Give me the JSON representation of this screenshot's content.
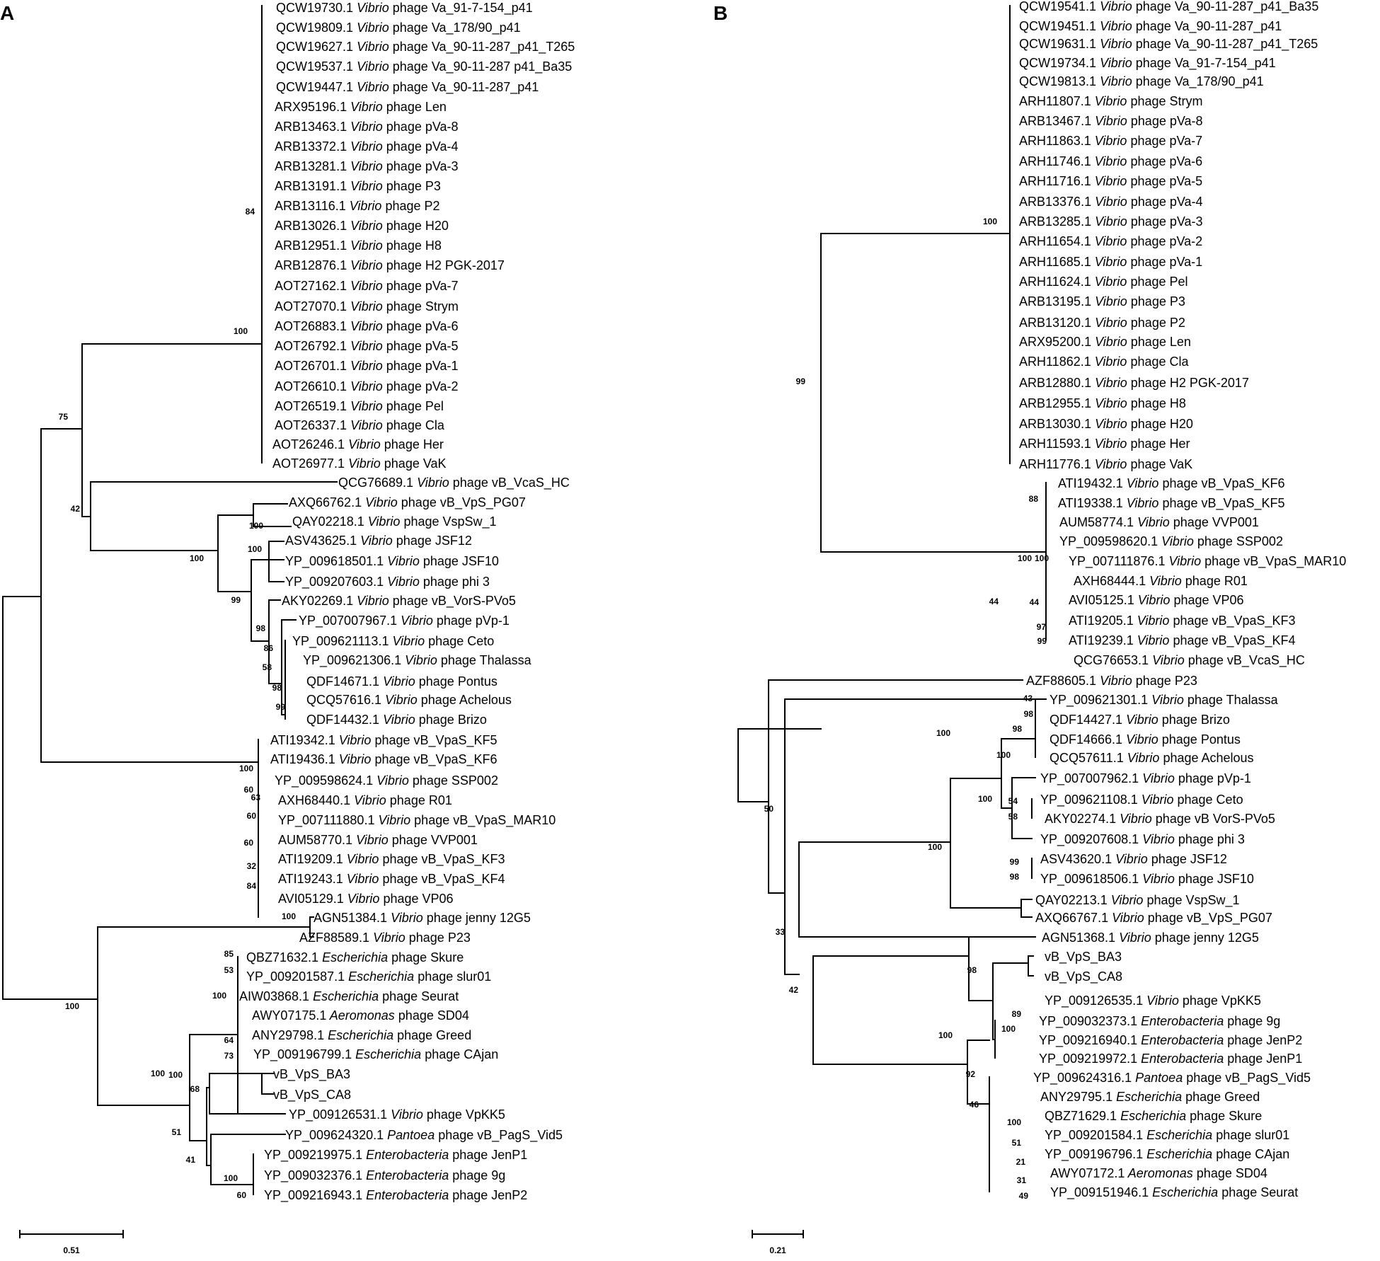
{
  "panels": [
    {
      "id": "A",
      "label": "A",
      "scale_label": "0.51",
      "tips": [
        {
          "acc": "QCW19730.1",
          "genus": "Vibrio",
          "phage": "phage Va_91-7-154_p41"
        },
        {
          "acc": "QCW19809.1",
          "genus": "Vibrio",
          "phage": "phage Va_178/90_p41"
        },
        {
          "acc": "QCW19627.1",
          "genus": "Vibrio",
          "phage": "phage Va_90-11-287_p41_T265"
        },
        {
          "acc": "QCW19537.1",
          "genus": "Vibrio",
          "phage": "phage Va_90-11-287 p41_Ba35"
        },
        {
          "acc": "QCW19447.1",
          "genus": "Vibrio",
          "phage": "phage Va_90-11-287_p41"
        },
        {
          "acc": "ARX95196.1",
          "genus": "Vibrio",
          "phage": "phage Len"
        },
        {
          "acc": "ARB13463.1",
          "genus": "Vibrio",
          "phage": "phage pVa-8"
        },
        {
          "acc": "ARB13372.1",
          "genus": "Vibrio",
          "phage": "phage pVa-4"
        },
        {
          "acc": "ARB13281.1",
          "genus": "Vibrio",
          "phage": "phage pVa-3"
        },
        {
          "acc": "ARB13191.1",
          "genus": "Vibrio",
          "phage": "phage P3"
        },
        {
          "acc": "ARB13116.1",
          "genus": "Vibrio",
          "phage": "phage P2"
        },
        {
          "acc": "ARB13026.1",
          "genus": "Vibrio",
          "phage": "phage H20"
        },
        {
          "acc": "ARB12951.1",
          "genus": "Vibrio",
          "phage": "phage H8"
        },
        {
          "acc": "ARB12876.1",
          "genus": "Vibrio",
          "phage": "phage H2 PGK-2017"
        },
        {
          "acc": "AOT27162.1",
          "genus": "Vibrio",
          "phage": "phage pVa-7"
        },
        {
          "acc": "AOT27070.1",
          "genus": "Vibrio",
          "phage": "phage Strym"
        },
        {
          "acc": "AOT26883.1",
          "genus": "Vibrio",
          "phage": "phage pVa-6"
        },
        {
          "acc": "AOT26792.1",
          "genus": "Vibrio",
          "phage": "phage pVa-5"
        },
        {
          "acc": "AOT26701.1",
          "genus": "Vibrio",
          "phage": "phage pVa-1"
        },
        {
          "acc": "AOT26610.1",
          "genus": "Vibrio",
          "phage": "phage pVa-2"
        },
        {
          "acc": "AOT26519.1",
          "genus": "Vibrio",
          "phage": "phage Pel"
        },
        {
          "acc": "AOT26337.1",
          "genus": "Vibrio",
          "phage": "phage Cla"
        },
        {
          "acc": "AOT26246.1",
          "genus": "Vibrio",
          "phage": "phage Her"
        },
        {
          "acc": "AOT26977.1",
          "genus": "Vibrio",
          "phage": "phage VaK"
        },
        {
          "acc": "QCG76689.1",
          "genus": "Vibrio",
          "phage": "phage vB_VcaS_HC"
        },
        {
          "acc": "AXQ66762.1",
          "genus": "Vibrio",
          "phage": "phage vB_VpS_PG07"
        },
        {
          "acc": "QAY02218.1",
          "genus": "Vibrio",
          "phage": "phage VspSw_1"
        },
        {
          "acc": "ASV43625.1",
          "genus": "Vibrio",
          "phage": "phage JSF12"
        },
        {
          "acc": "YP_009618501.1",
          "genus": "Vibrio",
          "phage": "phage JSF10"
        },
        {
          "acc": "YP_009207603.1",
          "genus": "Vibrio",
          "phage": "phage phi 3"
        },
        {
          "acc": "AKY02269.1",
          "genus": "Vibrio",
          "phage": "phage vB_VorS-PVo5"
        },
        {
          "acc": "YP_007007967.1",
          "genus": "Vibrio",
          "phage": "phage pVp-1"
        },
        {
          "acc": "YP_009621113.1",
          "genus": "Vibrio",
          "phage": "phage Ceto"
        },
        {
          "acc": "YP_009621306.1",
          "genus": "Vibrio",
          "phage": "phage Thalassa"
        },
        {
          "acc": "QDF14671.1",
          "genus": "Vibrio",
          "phage": "phage Pontus"
        },
        {
          "acc": "QCQ57616.1",
          "genus": "Vibrio",
          "phage": "phage Achelous"
        },
        {
          "acc": "QDF14432.1",
          "genus": "Vibrio",
          "phage": "phage Brizo"
        },
        {
          "acc": "ATI19342.1",
          "genus": "Vibrio",
          "phage": "phage vB_VpaS_KF5"
        },
        {
          "acc": "ATI19436.1",
          "genus": "Vibrio",
          "phage": "phage vB_VpaS_KF6"
        },
        {
          "acc": "YP_009598624.1",
          "genus": "Vibrio",
          "phage": "phage SSP002"
        },
        {
          "acc": "AXH68440.1",
          "genus": "Vibrio",
          "phage": "phage R01"
        },
        {
          "acc": "YP_007111880.1",
          "genus": "Vibrio",
          "phage": "phage vB_VpaS_MAR10"
        },
        {
          "acc": "AUM58770.1",
          "genus": "Vibrio",
          "phage": "phage VVP001"
        },
        {
          "acc": "ATI19209.1",
          "genus": "Vibrio",
          "phage": "phage vB_VpaS_KF3"
        },
        {
          "acc": "ATI19243.1",
          "genus": "Vibrio",
          "phage": "phage vB_VpaS_KF4"
        },
        {
          "acc": "AVI05129.1",
          "genus": "Vibrio",
          "phage": "phage VP06"
        },
        {
          "acc": "AGN51384.1",
          "genus": "Vibrio",
          "phage": "phage jenny 12G5"
        },
        {
          "acc": "AZF88589.1",
          "genus": "Vibrio",
          "phage": "phage P23"
        },
        {
          "acc": "QBZ71632.1",
          "genus": "Escherichia",
          "phage": "phage Skure"
        },
        {
          "acc": "YP_009201587.1",
          "genus": "Escherichia",
          "phage": "phage slur01"
        },
        {
          "acc": "AIW03868.1",
          "genus": "Escherichia",
          "phage": "phage Seurat"
        },
        {
          "acc": "AWY07175.1",
          "genus": "Aeromonas",
          "phage": "phage SD04"
        },
        {
          "acc": "ANY29798.1",
          "genus": "Escherichia",
          "phage": "phage Greed"
        },
        {
          "acc": "YP_009196799.1",
          "genus": "Escherichia",
          "phage": "phage CAjan"
        },
        {
          "acc": "vB_VpS_BA3",
          "genus": "",
          "phage": ""
        },
        {
          "acc": "vB_VpS_CA8",
          "genus": "",
          "phage": ""
        },
        {
          "acc": "YP_009126531.1",
          "genus": "Vibrio",
          "phage": "phage VpKK5"
        },
        {
          "acc": "YP_009624320.1",
          "genus": "Pantoea",
          "phage": "phage vB_PagS_Vid5"
        },
        {
          "acc": "YP_009219975.1",
          "genus": "Enterobacteria",
          "phage": "phage JenP1"
        },
        {
          "acc": "YP_009032376.1",
          "genus": "Enterobacteria",
          "phage": "phage 9g"
        },
        {
          "acc": "YP_009216943.1",
          "genus": "Enterobacteria",
          "phage": "phage JenP2"
        }
      ],
      "support": [
        "84",
        "100",
        "75",
        "42",
        "100",
        "100",
        "100",
        "99",
        "98",
        "86",
        "58",
        "98",
        "99",
        "100",
        "60",
        "63",
        "60",
        "60",
        "32",
        "84",
        "100",
        "85",
        "53",
        "100",
        "64",
        "73",
        "100",
        "68",
        "100",
        "51",
        "41",
        "100",
        "60",
        "100"
      ]
    },
    {
      "id": "B",
      "label": "B",
      "scale_label": "0.21",
      "tips": [
        {
          "acc": "QCW19541.1",
          "genus": "Vibrio",
          "phage": "phage Va_90-11-287_p41_Ba35"
        },
        {
          "acc": "QCW19451.1",
          "genus": "Vibrio",
          "phage": "phage Va_90-11-287_p41"
        },
        {
          "acc": "QCW19631.1",
          "genus": "Vibrio",
          "phage": "phage Va_90-11-287_p41_T265"
        },
        {
          "acc": "QCW19734.1",
          "genus": "Vibrio",
          "phage": "phage Va_91-7-154_p41"
        },
        {
          "acc": "QCW19813.1",
          "genus": "Vibrio",
          "phage": "phage Va_178/90_p41"
        },
        {
          "acc": "ARH11807.1",
          "genus": "Vibrio",
          "phage": "phage Strym"
        },
        {
          "acc": "ARB13467.1",
          "genus": "Vibrio",
          "phage": "phage pVa-8"
        },
        {
          "acc": "ARH11863.1",
          "genus": "Vibrio",
          "phage": "phage pVa-7"
        },
        {
          "acc": "ARH11746.1",
          "genus": "Vibrio",
          "phage": "phage pVa-6"
        },
        {
          "acc": "ARH11716.1",
          "genus": "Vibrio",
          "phage": "phage pVa-5"
        },
        {
          "acc": "ARB13376.1",
          "genus": "Vibrio",
          "phage": "phage pVa-4"
        },
        {
          "acc": "ARB13285.1",
          "genus": "Vibrio",
          "phage": "phage pVa-3"
        },
        {
          "acc": "ARH11654.1",
          "genus": "Vibrio",
          "phage": "phage pVa-2"
        },
        {
          "acc": "ARH11685.1",
          "genus": "Vibrio",
          "phage": "phage pVa-1"
        },
        {
          "acc": "ARH11624.1",
          "genus": "Vibrio",
          "phage": "phage Pel"
        },
        {
          "acc": "ARB13195.1",
          "genus": "Vibrio",
          "phage": "phage P3"
        },
        {
          "acc": "ARB13120.1",
          "genus": "Vibrio",
          "phage": "phage P2"
        },
        {
          "acc": "ARX95200.1",
          "genus": "Vibrio",
          "phage": "phage Len"
        },
        {
          "acc": "ARH11862.1",
          "genus": "Vibrio",
          "phage": "phage Cla"
        },
        {
          "acc": "ARB12880.1",
          "genus": "Vibrio",
          "phage": "phage H2 PGK-2017"
        },
        {
          "acc": "ARB12955.1",
          "genus": "Vibrio",
          "phage": "phage H8"
        },
        {
          "acc": "ARB13030.1",
          "genus": "Vibrio",
          "phage": "phage H20"
        },
        {
          "acc": "ARH11593.1",
          "genus": "Vibrio",
          "phage": "phage Her"
        },
        {
          "acc": "ARH11776.1",
          "genus": "Vibrio",
          "phage": "phage VaK"
        },
        {
          "acc": "ATI19432.1",
          "genus": "Vibrio",
          "phage": "phage vB_VpaS_KF6"
        },
        {
          "acc": "ATI19338.1",
          "genus": "Vibrio",
          "phage": "phage vB_VpaS_KF5"
        },
        {
          "acc": "AUM58774.1",
          "genus": "Vibrio",
          "phage": "phage VVP001"
        },
        {
          "acc": "YP_009598620.1",
          "genus": "Vibrio",
          "phage": "phage SSP002"
        },
        {
          "acc": "YP_007111876.1",
          "genus": "Vibrio",
          "phage": "phage vB_VpaS_MAR10"
        },
        {
          "acc": "AXH68444.1",
          "genus": "Vibrio",
          "phage": "phage R01"
        },
        {
          "acc": "AVI05125.1",
          "genus": "Vibrio",
          "phage": "phage VP06"
        },
        {
          "acc": "ATI19205.1",
          "genus": "Vibrio",
          "phage": "phage vB_VpaS_KF3"
        },
        {
          "acc": "ATI19239.1",
          "genus": "Vibrio",
          "phage": "phage vB_VpaS_KF4"
        },
        {
          "acc": "QCG76653.1",
          "genus": "Vibrio",
          "phage": "phage vB_VcaS_HC"
        },
        {
          "acc": "AZF88605.1",
          "genus": "Vibrio",
          "phage": "phage P23"
        },
        {
          "acc": "YP_009621301.1",
          "genus": "Vibrio",
          "phage": "phage Thalassa"
        },
        {
          "acc": "QDF14427.1",
          "genus": "Vibrio",
          "phage": "phage Brizo"
        },
        {
          "acc": "QDF14666.1",
          "genus": "Vibrio",
          "phage": "phage Pontus"
        },
        {
          "acc": "QCQ57611.1",
          "genus": "Vibrio",
          "phage": "phage Achelous"
        },
        {
          "acc": "YP_007007962.1",
          "genus": "Vibrio",
          "phage": "phage pVp-1"
        },
        {
          "acc": "YP_009621108.1",
          "genus": "Vibrio",
          "phage": "phage Ceto"
        },
        {
          "acc": "AKY02274.1",
          "genus": "Vibrio",
          "phage": "phage vB VorS-PVo5"
        },
        {
          "acc": "YP_009207608.1",
          "genus": "Vibrio",
          "phage": "phage phi 3"
        },
        {
          "acc": "ASV43620.1",
          "genus": "Vibrio",
          "phage": "phage JSF12"
        },
        {
          "acc": "YP_009618506.1",
          "genus": "Vibrio",
          "phage": "phage JSF10"
        },
        {
          "acc": "QAY02213.1",
          "genus": "Vibrio",
          "phage": "phage VspSw_1"
        },
        {
          "acc": "AXQ66767.1",
          "genus": "Vibrio",
          "phage": "phage vB_VpS_PG07"
        },
        {
          "acc": "AGN51368.1",
          "genus": "Vibrio",
          "phage": "phage jenny 12G5"
        },
        {
          "acc": "vB_VpS_BA3",
          "genus": "",
          "phage": ""
        },
        {
          "acc": "vB_VpS_CA8",
          "genus": "",
          "phage": ""
        },
        {
          "acc": "YP_009126535.1",
          "genus": "Vibrio",
          "phage": "phage VpKK5"
        },
        {
          "acc": "YP_009032373.1",
          "genus": "Enterobacteria",
          "phage": "phage 9g"
        },
        {
          "acc": "YP_009216940.1",
          "genus": "Enterobacteria",
          "phage": "phage JenP2"
        },
        {
          "acc": "YP_009219972.1",
          "genus": "Enterobacteria",
          "phage": "phage JenP1"
        },
        {
          "acc": "YP_009624316.1",
          "genus": "Pantoea",
          "phage": "phage vB_PagS_Vid5"
        },
        {
          "acc": "ANY29795.1",
          "genus": "Escherichia",
          "phage": "phage Greed"
        },
        {
          "acc": "QBZ71629.1",
          "genus": "Escherichia",
          "phage": "phage Skure"
        },
        {
          "acc": "YP_009201584.1",
          "genus": "Escherichia",
          "phage": "phage slur01"
        },
        {
          "acc": "YP_009196796.1",
          "genus": "Escherichia",
          "phage": "phage CAjan"
        },
        {
          "acc": "AWY07172.1",
          "genus": "Aeromonas",
          "phage": "phage SD04"
        },
        {
          "acc": "YP_009151946.1",
          "genus": "Escherichia",
          "phage": "phage Seurat"
        }
      ],
      "support": [
        "100",
        "99",
        "88",
        "100",
        "100",
        "44",
        "97",
        "99",
        "50",
        "44",
        "43",
        "98",
        "98",
        "100",
        "54",
        "58",
        "99",
        "98",
        "100",
        "100",
        "33",
        "42",
        "100",
        "98",
        "89",
        "100",
        "100",
        "92",
        "46",
        "100",
        "51",
        "21",
        "31",
        "49"
      ]
    }
  ]
}
